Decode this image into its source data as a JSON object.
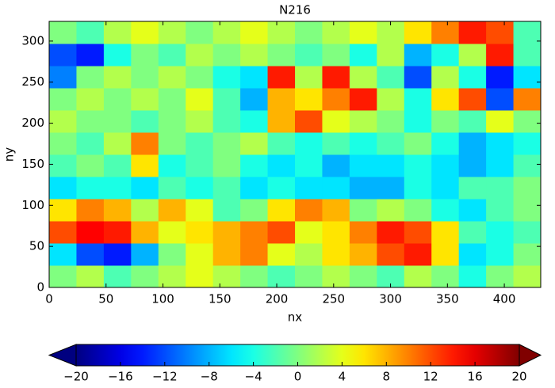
{
  "chart_data": {
    "type": "heatmap",
    "title": "N216",
    "x_label": "nx",
    "y_label": "ny",
    "x": [
      12,
      36,
      60,
      84,
      108,
      132,
      156,
      180,
      204,
      228,
      252,
      276,
      300,
      324,
      348,
      372,
      396,
      420
    ],
    "y": [
      13.5,
      40.5,
      67.5,
      94.5,
      121.5,
      148.5,
      175.5,
      202.5,
      229.5,
      256.5,
      283.5,
      310.5
    ],
    "values": [
      [
        0,
        2,
        -2,
        0,
        2,
        4,
        2,
        0,
        -2,
        0,
        2,
        0,
        -2,
        2,
        0,
        -4,
        0,
        2
      ],
      [
        -6,
        -12,
        -14,
        -8,
        0,
        4,
        8,
        10,
        4,
        2,
        6,
        8,
        12,
        14,
        6,
        -6,
        -4,
        0
      ],
      [
        12,
        15,
        14,
        8,
        4,
        6,
        8,
        10,
        12,
        4,
        6,
        10,
        14,
        12,
        6,
        -2,
        -4,
        -2
      ],
      [
        6,
        10,
        8,
        2,
        8,
        4,
        -2,
        0,
        6,
        10,
        8,
        0,
        2,
        0,
        -4,
        -6,
        -2,
        0
      ],
      [
        -6,
        -4,
        -4,
        -6,
        -2,
        -4,
        -2,
        -6,
        -4,
        -6,
        -6,
        -8,
        -8,
        -4,
        -6,
        -2,
        -2,
        0
      ],
      [
        -2,
        0,
        -2,
        6,
        -4,
        -2,
        0,
        -4,
        -6,
        -4,
        -8,
        -6,
        -6,
        -4,
        -6,
        -8,
        -6,
        -2
      ],
      [
        0,
        -2,
        2,
        10,
        0,
        -2,
        0,
        2,
        -2,
        -4,
        -2,
        -4,
        -2,
        0,
        -4,
        -8,
        -6,
        -4
      ],
      [
        2,
        0,
        0,
        -2,
        0,
        2,
        -2,
        -4,
        8,
        12,
        4,
        2,
        0,
        -4,
        0,
        -2,
        4,
        0
      ],
      [
        0,
        2,
        0,
        2,
        0,
        4,
        -2,
        -8,
        8,
        6,
        10,
        14,
        2,
        -4,
        6,
        12,
        -12,
        10
      ],
      [
        -10,
        0,
        2,
        0,
        2,
        0,
        -4,
        -6,
        14,
        2,
        14,
        2,
        -2,
        -12,
        2,
        -4,
        -14,
        -6
      ],
      [
        -12,
        -14,
        -4,
        0,
        -2,
        2,
        0,
        2,
        0,
        -2,
        0,
        -4,
        2,
        -8,
        -4,
        2,
        14,
        -2
      ],
      [
        0,
        -2,
        2,
        4,
        2,
        0,
        2,
        4,
        2,
        0,
        2,
        4,
        2,
        6,
        10,
        14,
        12,
        -2
      ]
    ],
    "xlim": [
      0,
      432
    ],
    "ylim": [
      0,
      324
    ],
    "xticks": [
      0,
      50,
      100,
      150,
      200,
      250,
      300,
      350,
      400
    ],
    "yticks": [
      0,
      50,
      100,
      150,
      200,
      250,
      300
    ],
    "colormap": "jet",
    "colorbar": {
      "lim": [
        -20,
        20
      ],
      "extend": "both",
      "ticks": [
        {
          "value": -20,
          "label": "−20"
        },
        {
          "value": -16,
          "label": "−16"
        },
        {
          "value": -12,
          "label": "−12"
        },
        {
          "value": -8,
          "label": "−8"
        },
        {
          "value": -4,
          "label": "−4"
        },
        0,
        4,
        8,
        12,
        16,
        20
      ]
    }
  }
}
